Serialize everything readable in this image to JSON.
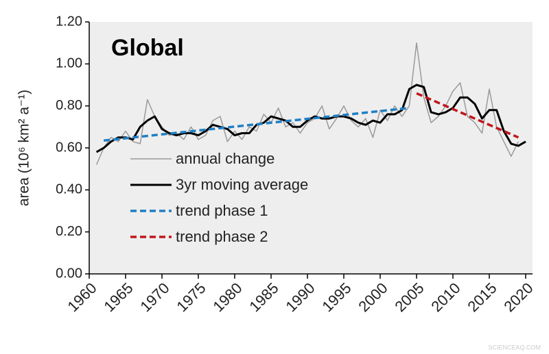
{
  "chart_data": {
    "type": "line",
    "title": "Global",
    "y_label": "area (10⁶ km² a⁻¹)",
    "x": [
      1961,
      1962,
      1963,
      1964,
      1965,
      1966,
      1967,
      1968,
      1969,
      1970,
      1971,
      1972,
      1973,
      1974,
      1975,
      1976,
      1977,
      1978,
      1979,
      1980,
      1981,
      1982,
      1983,
      1984,
      1985,
      1986,
      1987,
      1988,
      1989,
      1990,
      1991,
      1992,
      1993,
      1994,
      1995,
      1996,
      1997,
      1998,
      1999,
      2000,
      2001,
      2002,
      2003,
      2004,
      2005,
      2006,
      2007,
      2008,
      2009,
      2010,
      2011,
      2012,
      2013,
      2014,
      2015,
      2016,
      2017,
      2018,
      2019,
      2020
    ],
    "series": [
      {
        "name": "annual change",
        "color": "#999999",
        "width": 1.5,
        "dash": false,
        "values": [
          0.52,
          0.6,
          0.65,
          0.63,
          0.68,
          0.63,
          0.62,
          0.83,
          0.75,
          0.7,
          0.66,
          0.67,
          0.64,
          0.7,
          0.64,
          0.66,
          0.73,
          0.75,
          0.63,
          0.68,
          0.64,
          0.7,
          0.68,
          0.76,
          0.72,
          0.79,
          0.7,
          0.72,
          0.67,
          0.72,
          0.74,
          0.8,
          0.69,
          0.74,
          0.8,
          0.73,
          0.7,
          0.74,
          0.65,
          0.78,
          0.73,
          0.8,
          0.75,
          0.8,
          1.1,
          0.84,
          0.72,
          0.75,
          0.8,
          0.87,
          0.91,
          0.75,
          0.72,
          0.67,
          0.88,
          0.7,
          0.63,
          0.56,
          0.63,
          null
        ]
      },
      {
        "name": "3yr moving average",
        "color": "#000000",
        "width": 3,
        "dash": false,
        "values": [
          0.58,
          0.6,
          0.63,
          0.65,
          0.65,
          0.64,
          0.7,
          0.73,
          0.75,
          0.69,
          0.67,
          0.66,
          0.67,
          0.67,
          0.66,
          0.68,
          0.71,
          0.7,
          0.69,
          0.66,
          0.67,
          0.67,
          0.71,
          0.72,
          0.75,
          0.74,
          0.73,
          0.7,
          0.7,
          0.73,
          0.75,
          0.74,
          0.74,
          0.75,
          0.75,
          0.74,
          0.72,
          0.71,
          0.73,
          0.72,
          0.76,
          0.76,
          0.78,
          0.88,
          0.9,
          0.89,
          0.77,
          0.76,
          0.77,
          0.79,
          0.84,
          0.84,
          0.81,
          0.74,
          0.78,
          0.78,
          0.68,
          0.62,
          0.61,
          0.63
        ]
      },
      {
        "name": "trend phase 1",
        "color": "#1f7fc4",
        "width": 3.5,
        "dash": true,
        "x": [
          1962,
          2004
        ],
        "values": [
          0.635,
          0.79
        ]
      },
      {
        "name": "trend phase 2",
        "color": "#c0161b",
        "width": 3.5,
        "dash": true,
        "x": [
          2005,
          2019
        ],
        "values": [
          0.86,
          0.65
        ]
      }
    ],
    "xlim": [
      1960,
      2020
    ],
    "xticks": [
      1960,
      1965,
      1970,
      1975,
      1980,
      1985,
      1990,
      1995,
      2000,
      2005,
      2010,
      2015,
      2020
    ],
    "ylim": [
      0,
      1.2
    ],
    "yticks": [
      {
        "value": 0,
        "label": "0.00"
      },
      {
        "value": 0.2,
        "label": "0.20"
      },
      {
        "value": 0.4,
        "label": "0.40"
      },
      {
        "value": 0.6,
        "label": "0.60"
      },
      {
        "value": 0.8,
        "label": "0.80"
      },
      {
        "value": 1.0,
        "label": "1.00"
      },
      {
        "value": 1.2,
        "label": "1.20"
      }
    ],
    "legend": "center left",
    "grid": false
  },
  "watermark": "SCIENCEAQ.COM"
}
